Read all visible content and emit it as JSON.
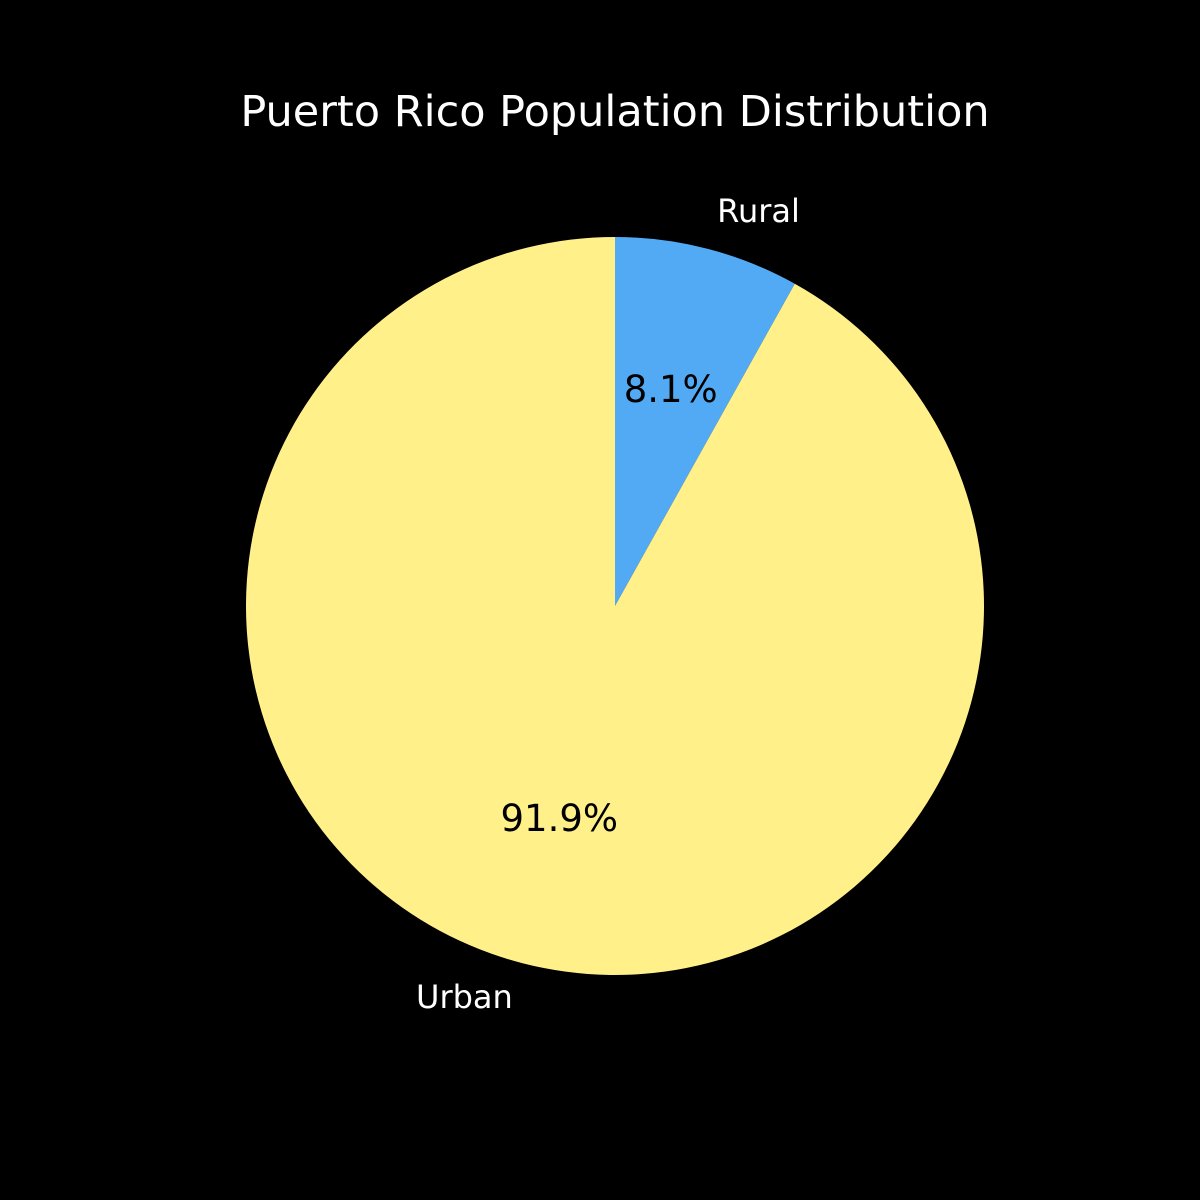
{
  "chart_data": {
    "type": "pie",
    "title": "Puerto Rico Population Distribution",
    "start_angle_deg": 90,
    "direction": "clockwise",
    "slices": [
      {
        "label": "Rural",
        "value": 8.1,
        "pct_label": "8.1%",
        "color": "#52aaf5"
      },
      {
        "label": "Urban",
        "value": 91.9,
        "pct_label": "91.9%",
        "color": "#fff08a"
      }
    ],
    "background": "#000000",
    "text_color": "#ffffff",
    "pct_text_color": "#000000"
  }
}
